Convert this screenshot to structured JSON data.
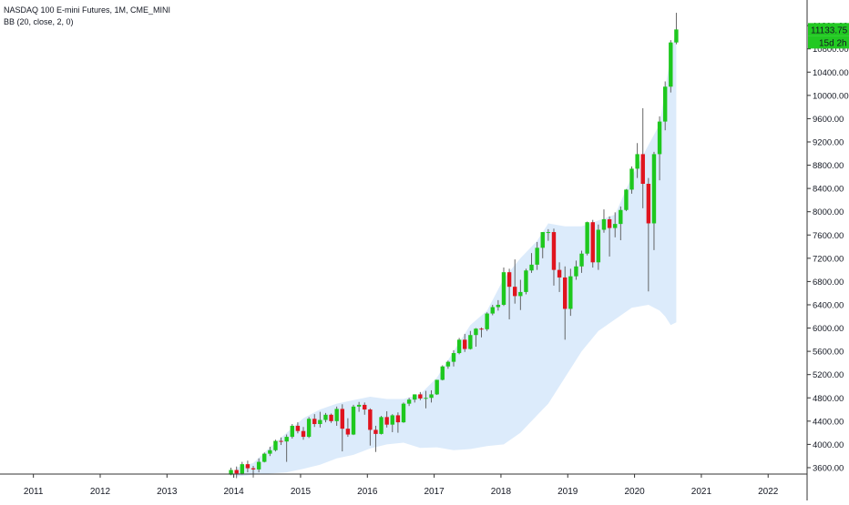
{
  "header": {
    "symbol_line": "NASDAQ 100 E-mini Futures, 1M, CME_MINI",
    "indicator_line": "BB (20, close, 2, 0)"
  },
  "price_badge": {
    "price": "11133.75",
    "countdown": "15d 2h"
  },
  "colors": {
    "up": "#1ec81e",
    "down": "#e0141e",
    "band_fill": "#dcebfb",
    "axis": "#333333",
    "badge": "#22c922"
  },
  "chart_data": {
    "type": "candlestick",
    "x_ticks": [
      "2011",
      "2012",
      "2013",
      "2014",
      "2015",
      "2016",
      "2017",
      "2018",
      "2019",
      "2020",
      "2021",
      "2022"
    ],
    "y_ticks": [
      3600,
      4000,
      4400,
      4800,
      5200,
      5600,
      6000,
      6400,
      6800,
      7200,
      7600,
      8000,
      8400,
      8800,
      9200,
      9600,
      10000,
      10400,
      10800,
      11200
    ],
    "y_tick_labels": [
      "3600.00",
      "4000.00",
      "4400.00",
      "4800.00",
      "5200.00",
      "5600.00",
      "6000.00",
      "6400.00",
      "6800.00",
      "7200.00",
      "7600.00",
      "8000.00",
      "8400.00",
      "8800.00",
      "9200.00",
      "9600.00",
      "10000.00",
      "10400.00",
      "10800.00",
      "11200.00"
    ],
    "ylim": [
      3490,
      11640
    ],
    "xlim": [
      "2010-07",
      "2022-08"
    ],
    "candles": [
      {
        "t": "2013-12",
        "o": 3480,
        "h": 3600,
        "l": 3470,
        "c": 3560
      },
      {
        "t": "2014-01",
        "o": 3560,
        "h": 3620,
        "l": 3420,
        "c": 3500
      },
      {
        "t": "2014-02",
        "o": 3500,
        "h": 3700,
        "l": 3480,
        "c": 3660
      },
      {
        "t": "2014-03",
        "o": 3660,
        "h": 3720,
        "l": 3520,
        "c": 3590
      },
      {
        "t": "2014-04",
        "o": 3590,
        "h": 3630,
        "l": 3430,
        "c": 3570
      },
      {
        "t": "2014-05",
        "o": 3570,
        "h": 3760,
        "l": 3520,
        "c": 3700
      },
      {
        "t": "2014-06",
        "o": 3700,
        "h": 3860,
        "l": 3690,
        "c": 3840
      },
      {
        "t": "2014-07",
        "o": 3840,
        "h": 3960,
        "l": 3800,
        "c": 3900
      },
      {
        "t": "2014-08",
        "o": 3900,
        "h": 4080,
        "l": 3880,
        "c": 4060
      },
      {
        "t": "2014-09",
        "o": 4060,
        "h": 4120,
        "l": 3990,
        "c": 4050
      },
      {
        "t": "2014-10",
        "o": 4050,
        "h": 4170,
        "l": 3700,
        "c": 4130
      },
      {
        "t": "2014-11",
        "o": 4130,
        "h": 4350,
        "l": 4100,
        "c": 4320
      },
      {
        "t": "2014-12",
        "o": 4320,
        "h": 4380,
        "l": 4190,
        "c": 4230
      },
      {
        "t": "2015-01",
        "o": 4230,
        "h": 4300,
        "l": 4080,
        "c": 4130
      },
      {
        "t": "2015-02",
        "o": 4130,
        "h": 4470,
        "l": 4110,
        "c": 4440
      },
      {
        "t": "2015-03",
        "o": 4440,
        "h": 4520,
        "l": 4300,
        "c": 4350
      },
      {
        "t": "2015-04",
        "o": 4350,
        "h": 4560,
        "l": 4290,
        "c": 4420
      },
      {
        "t": "2015-05",
        "o": 4420,
        "h": 4540,
        "l": 4380,
        "c": 4510
      },
      {
        "t": "2015-06",
        "o": 4510,
        "h": 4530,
        "l": 4370,
        "c": 4400
      },
      {
        "t": "2015-07",
        "o": 4400,
        "h": 4650,
        "l": 4320,
        "c": 4610
      },
      {
        "t": "2015-08",
        "o": 4610,
        "h": 4690,
        "l": 3880,
        "c": 4270
      },
      {
        "t": "2015-09",
        "o": 4270,
        "h": 4450,
        "l": 4130,
        "c": 4170
      },
      {
        "t": "2015-10",
        "o": 4170,
        "h": 4680,
        "l": 4160,
        "c": 4650
      },
      {
        "t": "2015-11",
        "o": 4650,
        "h": 4730,
        "l": 4560,
        "c": 4680
      },
      {
        "t": "2015-12",
        "o": 4680,
        "h": 4720,
        "l": 4510,
        "c": 4600
      },
      {
        "t": "2016-01",
        "o": 4600,
        "h": 4620,
        "l": 3980,
        "c": 4250
      },
      {
        "t": "2016-02",
        "o": 4250,
        "h": 4320,
        "l": 3870,
        "c": 4180
      },
      {
        "t": "2016-03",
        "o": 4180,
        "h": 4490,
        "l": 4170,
        "c": 4470
      },
      {
        "t": "2016-04",
        "o": 4470,
        "h": 4570,
        "l": 4290,
        "c": 4340
      },
      {
        "t": "2016-05",
        "o": 4340,
        "h": 4520,
        "l": 4210,
        "c": 4500
      },
      {
        "t": "2016-06",
        "o": 4500,
        "h": 4550,
        "l": 4200,
        "c": 4380
      },
      {
        "t": "2016-07",
        "o": 4380,
        "h": 4720,
        "l": 4370,
        "c": 4700
      },
      {
        "t": "2016-08",
        "o": 4700,
        "h": 4800,
        "l": 4660,
        "c": 4770
      },
      {
        "t": "2016-09",
        "o": 4770,
        "h": 4860,
        "l": 4720,
        "c": 4860
      },
      {
        "t": "2016-10",
        "o": 4860,
        "h": 4900,
        "l": 4760,
        "c": 4790
      },
      {
        "t": "2016-11",
        "o": 4790,
        "h": 4920,
        "l": 4620,
        "c": 4800
      },
      {
        "t": "2016-12",
        "o": 4800,
        "h": 4930,
        "l": 4720,
        "c": 4860
      },
      {
        "t": "2017-01",
        "o": 4860,
        "h": 5110,
        "l": 4850,
        "c": 5110
      },
      {
        "t": "2017-02",
        "o": 5110,
        "h": 5360,
        "l": 5100,
        "c": 5340
      },
      {
        "t": "2017-03",
        "o": 5340,
        "h": 5440,
        "l": 5300,
        "c": 5420
      },
      {
        "t": "2017-04",
        "o": 5420,
        "h": 5620,
        "l": 5340,
        "c": 5570
      },
      {
        "t": "2017-05",
        "o": 5570,
        "h": 5830,
        "l": 5550,
        "c": 5800
      },
      {
        "t": "2017-06",
        "o": 5800,
        "h": 5900,
        "l": 5590,
        "c": 5640
      },
      {
        "t": "2017-07",
        "o": 5640,
        "h": 5950,
        "l": 5630,
        "c": 5880
      },
      {
        "t": "2017-08",
        "o": 5880,
        "h": 6000,
        "l": 5680,
        "c": 5990
      },
      {
        "t": "2017-09",
        "o": 5990,
        "h": 6010,
        "l": 5840,
        "c": 5980
      },
      {
        "t": "2017-10",
        "o": 5980,
        "h": 6270,
        "l": 5950,
        "c": 6250
      },
      {
        "t": "2017-11",
        "o": 6250,
        "h": 6400,
        "l": 6220,
        "c": 6360
      },
      {
        "t": "2017-12",
        "o": 6360,
        "h": 6480,
        "l": 6300,
        "c": 6400
      },
      {
        "t": "2018-01",
        "o": 6400,
        "h": 7040,
        "l": 6380,
        "c": 6960
      },
      {
        "t": "2018-02",
        "o": 6960,
        "h": 7020,
        "l": 6150,
        "c": 6710
      },
      {
        "t": "2018-03",
        "o": 6710,
        "h": 7180,
        "l": 6420,
        "c": 6550
      },
      {
        "t": "2018-04",
        "o": 6550,
        "h": 6830,
        "l": 6310,
        "c": 6620
      },
      {
        "t": "2018-05",
        "o": 6620,
        "h": 7020,
        "l": 6580,
        "c": 6990
      },
      {
        "t": "2018-06",
        "o": 6990,
        "h": 7290,
        "l": 6950,
        "c": 7090
      },
      {
        "t": "2018-07",
        "o": 7090,
        "h": 7480,
        "l": 7000,
        "c": 7380
      },
      {
        "t": "2018-08",
        "o": 7380,
        "h": 7650,
        "l": 7200,
        "c": 7650
      },
      {
        "t": "2018-09",
        "o": 7650,
        "h": 7700,
        "l": 7500,
        "c": 7650
      },
      {
        "t": "2018-10",
        "o": 7650,
        "h": 7710,
        "l": 6730,
        "c": 7000
      },
      {
        "t": "2018-11",
        "o": 7000,
        "h": 7130,
        "l": 6620,
        "c": 6870
      },
      {
        "t": "2018-12",
        "o": 6870,
        "h": 7060,
        "l": 5800,
        "c": 6330
      },
      {
        "t": "2019-01",
        "o": 6330,
        "h": 7020,
        "l": 6210,
        "c": 6890
      },
      {
        "t": "2019-02",
        "o": 6890,
        "h": 7160,
        "l": 6830,
        "c": 7060
      },
      {
        "t": "2019-03",
        "o": 7060,
        "h": 7330,
        "l": 6950,
        "c": 7280
      },
      {
        "t": "2019-04",
        "o": 7280,
        "h": 7830,
        "l": 7250,
        "c": 7820
      },
      {
        "t": "2019-05",
        "o": 7820,
        "h": 7860,
        "l": 7040,
        "c": 7130
      },
      {
        "t": "2019-06",
        "o": 7130,
        "h": 7780,
        "l": 7000,
        "c": 7690
      },
      {
        "t": "2019-07",
        "o": 7690,
        "h": 8040,
        "l": 7640,
        "c": 7870
      },
      {
        "t": "2019-08",
        "o": 7870,
        "h": 7920,
        "l": 7230,
        "c": 7720
      },
      {
        "t": "2019-09",
        "o": 7720,
        "h": 7990,
        "l": 7560,
        "c": 7790
      },
      {
        "t": "2019-10",
        "o": 7790,
        "h": 8090,
        "l": 7510,
        "c": 8030
      },
      {
        "t": "2019-11",
        "o": 8030,
        "h": 8390,
        "l": 8010,
        "c": 8380
      },
      {
        "t": "2019-12",
        "o": 8380,
        "h": 8780,
        "l": 8310,
        "c": 8740
      },
      {
        "t": "2020-01",
        "o": 8740,
        "h": 9180,
        "l": 8580,
        "c": 8990
      },
      {
        "t": "2020-02",
        "o": 8990,
        "h": 9780,
        "l": 8060,
        "c": 8480
      },
      {
        "t": "2020-03",
        "o": 8480,
        "h": 8580,
        "l": 6630,
        "c": 7800
      },
      {
        "t": "2020-04",
        "o": 7800,
        "h": 9030,
        "l": 7340,
        "c": 8990
      },
      {
        "t": "2020-05",
        "o": 8990,
        "h": 9640,
        "l": 8540,
        "c": 9550
      },
      {
        "t": "2020-06",
        "o": 9550,
        "h": 10240,
        "l": 9400,
        "c": 10150
      },
      {
        "t": "2020-07",
        "o": 10150,
        "h": 10950,
        "l": 10050,
        "c": 10910
      },
      {
        "t": "2020-08",
        "o": 10910,
        "h": 11420,
        "l": 10880,
        "c": 11133.75
      }
    ],
    "bands": [
      {
        "t": "2014-01",
        "upper": 3600,
        "lower": 3450
      },
      {
        "t": "2014-04",
        "upper": 3680,
        "lower": 3480
      },
      {
        "t": "2014-07",
        "upper": 3950,
        "lower": 3500
      },
      {
        "t": "2014-10",
        "upper": 4200,
        "lower": 3520
      },
      {
        "t": "2015-01",
        "upper": 4450,
        "lower": 3580
      },
      {
        "t": "2015-04",
        "upper": 4600,
        "lower": 3650
      },
      {
        "t": "2015-07",
        "upper": 4700,
        "lower": 3760
      },
      {
        "t": "2015-10",
        "upper": 4760,
        "lower": 3820
      },
      {
        "t": "2016-01",
        "upper": 4820,
        "lower": 3930
      },
      {
        "t": "2016-04",
        "upper": 4780,
        "lower": 4000
      },
      {
        "t": "2016-07",
        "upper": 4780,
        "lower": 4030
      },
      {
        "t": "2016-10",
        "upper": 4860,
        "lower": 3940
      },
      {
        "t": "2017-01",
        "upper": 5150,
        "lower": 3950
      },
      {
        "t": "2017-04",
        "upper": 5600,
        "lower": 3900
      },
      {
        "t": "2017-07",
        "upper": 6050,
        "lower": 3920
      },
      {
        "t": "2017-10",
        "upper": 6300,
        "lower": 3970
      },
      {
        "t": "2018-01",
        "upper": 6850,
        "lower": 4000
      },
      {
        "t": "2018-04",
        "upper": 7200,
        "lower": 4200
      },
      {
        "t": "2018-07",
        "upper": 7500,
        "lower": 4500
      },
      {
        "t": "2018-09",
        "upper": 7800,
        "lower": 4700
      },
      {
        "t": "2018-12",
        "upper": 7750,
        "lower": 5150
      },
      {
        "t": "2019-03",
        "upper": 7750,
        "lower": 5600
      },
      {
        "t": "2019-06",
        "upper": 7850,
        "lower": 5950
      },
      {
        "t": "2019-09",
        "upper": 7950,
        "lower": 6150
      },
      {
        "t": "2019-12",
        "upper": 8600,
        "lower": 6350
      },
      {
        "t": "2020-03",
        "upper": 9150,
        "lower": 6400
      },
      {
        "t": "2020-05",
        "upper": 9500,
        "lower": 6300
      },
      {
        "t": "2020-06",
        "upper": 10100,
        "lower": 6200
      },
      {
        "t": "2020-07",
        "upper": 10700,
        "lower": 6050
      },
      {
        "t": "2020-08",
        "upper": 11150,
        "lower": 6100
      }
    ]
  }
}
